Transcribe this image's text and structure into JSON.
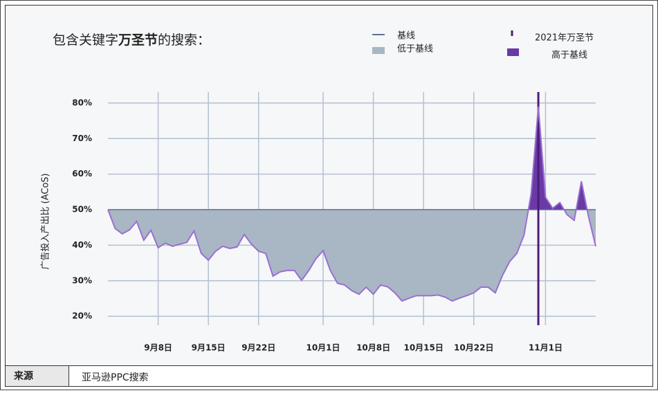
{
  "chart_data": {
    "type": "line",
    "title": {
      "prefix": "包含关键字",
      "keyword": "万圣节",
      "suffix": "的搜索："
    },
    "y_label": "广告投入产出比 (ACoS)",
    "x": [
      "09-01",
      "09-02",
      "09-03",
      "09-04",
      "09-05",
      "09-06",
      "09-07",
      "09-08",
      "09-09",
      "09-10",
      "09-11",
      "09-12",
      "09-13",
      "09-14",
      "09-15",
      "09-16",
      "09-17",
      "09-18",
      "09-19",
      "09-20",
      "09-21",
      "09-22",
      "09-23",
      "09-24",
      "09-25",
      "09-26",
      "09-27",
      "09-28",
      "09-29",
      "09-30",
      "10-01",
      "10-02",
      "10-03",
      "10-04",
      "10-05",
      "10-06",
      "10-07",
      "10-08",
      "10-09",
      "10-10",
      "10-11",
      "10-12",
      "10-13",
      "10-14",
      "10-15",
      "10-16",
      "10-17",
      "10-18",
      "10-19",
      "10-20",
      "10-21",
      "10-22",
      "10-23",
      "10-24",
      "10-25",
      "10-26",
      "10-27",
      "10-28",
      "10-29",
      "10-30",
      "10-31",
      "11-01",
      "11-02",
      "11-03",
      "11-04",
      "11-05",
      "11-06",
      "11-07",
      "11-08"
    ],
    "values": [
      50,
      44.7,
      43.2,
      44.3,
      46.7,
      41.4,
      44.2,
      39.3,
      40.6,
      39.7,
      40.3,
      40.8,
      44,
      37.7,
      35.8,
      38.3,
      39.7,
      39.1,
      39.5,
      43,
      40.3,
      38.3,
      37.7,
      31.3,
      32.5,
      32.9,
      32.9,
      30.1,
      32.9,
      36.2,
      38.5,
      32.9,
      29.3,
      28.8,
      27.2,
      26.2,
      28.2,
      26.2,
      28.8,
      28.3,
      26.6,
      24.3,
      25.1,
      25.8,
      25.8,
      25.8,
      26,
      25.4,
      24.3,
      25.1,
      25.8,
      26.6,
      28.2,
      28.2,
      26.6,
      31.5,
      35.4,
      37.7,
      42.8,
      54.5,
      79,
      53.5,
      50.4,
      52,
      48.6,
      47,
      58,
      48,
      39.7
    ],
    "color": "#9a6fd0",
    "baseline": {
      "name": "基线",
      "value": 50,
      "color": "#5d7290"
    },
    "below_fill": {
      "name": "低于基线",
      "color": "#a9b6c4"
    },
    "above_fill": {
      "name": "高于基线",
      "color": "#6a3aa6"
    },
    "event": {
      "name": "2021年万圣节",
      "x": "10-31",
      "color": "#4b1c7a"
    },
    "xlim": [
      "09-01",
      "11-08"
    ],
    "xticks": [
      {
        "value": "09-08",
        "label": "9月8日"
      },
      {
        "value": "09-15",
        "label": "9月15日"
      },
      {
        "value": "09-22",
        "label": "9月22日"
      },
      {
        "value": "10-01",
        "label": "10月1日"
      },
      {
        "value": "10-08",
        "label": "10月8日"
      },
      {
        "value": "10-15",
        "label": "10月15日"
      },
      {
        "value": "10-22",
        "label": "10月22日"
      },
      {
        "value": "11-01",
        "label": "11月1日"
      }
    ],
    "ylim": [
      17.5,
      83.1
    ],
    "yticks": [
      {
        "value": 20,
        "label": "20%"
      },
      {
        "value": 30,
        "label": "30%"
      },
      {
        "value": 40,
        "label": "40%"
      },
      {
        "value": 50,
        "label": "50%"
      },
      {
        "value": 60,
        "label": "60%"
      },
      {
        "value": 70,
        "label": "70%"
      },
      {
        "value": 80,
        "label": "80%"
      }
    ],
    "grid": true
  },
  "footer": {
    "label": "来源",
    "source": "亚马逊PPC搜索"
  }
}
